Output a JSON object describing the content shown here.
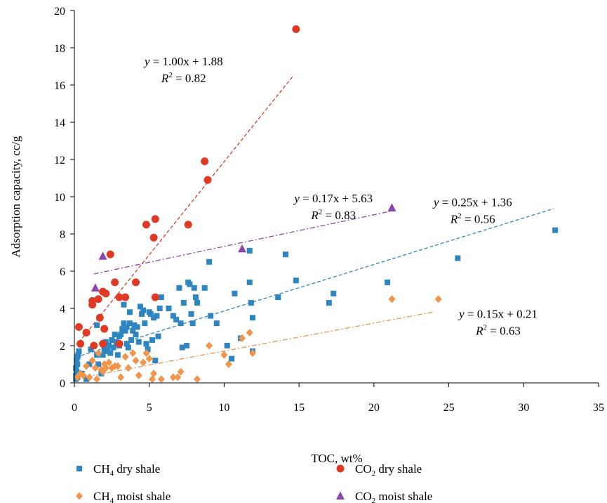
{
  "chart_data": {
    "type": "scatter",
    "xlabel": "TOC, wt%",
    "ylabel": "Adsorption capacity, cc/g",
    "xlim": [
      0,
      35
    ],
    "ylim": [
      0,
      20
    ],
    "xticks": [
      0,
      5,
      10,
      15,
      20,
      25,
      30,
      35
    ],
    "yticks": [
      0,
      2,
      4,
      6,
      8,
      10,
      12,
      14,
      16,
      18,
      20
    ],
    "grid": false,
    "legend_position": "bottom",
    "series": [
      {
        "name": "CH",
        "name_sub": "4",
        "name_suffix": " dry shale",
        "marker": "square",
        "color": "#2e86c1",
        "points": [
          [
            0.1,
            0.2
          ],
          [
            0.1,
            0.4
          ],
          [
            0.15,
            0.6
          ],
          [
            0.1,
            0.8
          ],
          [
            0.2,
            1.0
          ],
          [
            0.15,
            1.2
          ],
          [
            0.2,
            1.4
          ],
          [
            0.25,
            1.5
          ],
          [
            0.3,
            1.7
          ],
          [
            0.2,
            0.3
          ],
          [
            0.5,
            0.5
          ],
          [
            0.8,
            0.2
          ],
          [
            1.0,
            1.0
          ],
          [
            1.1,
            1.8
          ],
          [
            1.3,
            2.0
          ],
          [
            1.5,
            1.5
          ],
          [
            1.5,
            3.1
          ],
          [
            1.6,
            1.0
          ],
          [
            1.8,
            0.5
          ],
          [
            1.9,
            1.5
          ],
          [
            2.0,
            2.0
          ],
          [
            2.0,
            1.8
          ],
          [
            2.1,
            2.2
          ],
          [
            2.2,
            1.7
          ],
          [
            2.3,
            2.0
          ],
          [
            2.4,
            1.6
          ],
          [
            2.5,
            2.3
          ],
          [
            2.6,
            1.9
          ],
          [
            2.7,
            2.6
          ],
          [
            2.8,
            2.2
          ],
          [
            2.9,
            1.5
          ],
          [
            3.0,
            2.5
          ],
          [
            3.0,
            2.0
          ],
          [
            3.1,
            2.6
          ],
          [
            3.2,
            2.9
          ],
          [
            3.3,
            3.2
          ],
          [
            3.4,
            2.8
          ],
          [
            3.5,
            3.0
          ],
          [
            3.5,
            2.1
          ],
          [
            3.6,
            1.9
          ],
          [
            3.7,
            3.2
          ],
          [
            3.8,
            2.3
          ],
          [
            3.9,
            2.8
          ],
          [
            4.0,
            3.1
          ],
          [
            4.1,
            2.6
          ],
          [
            4.2,
            3.0
          ],
          [
            4.3,
            2.2
          ],
          [
            4.4,
            4.1
          ],
          [
            4.5,
            3.7
          ],
          [
            4.6,
            3.9
          ],
          [
            4.7,
            3.2
          ],
          [
            4.8,
            2.1
          ],
          [
            4.9,
            1.8
          ],
          [
            5.0,
            3.8
          ],
          [
            5.1,
            3.7
          ],
          [
            5.2,
            2.3
          ],
          [
            5.3,
            3.5
          ],
          [
            5.4,
            1.2
          ],
          [
            5.5,
            3.6
          ],
          [
            5.6,
            2.5
          ],
          [
            5.7,
            4.0
          ],
          [
            5.8,
            4.6
          ],
          [
            3.3,
            4.2
          ],
          [
            3.7,
            3.8
          ],
          [
            6.6,
            3.6
          ],
          [
            6.8,
            3.4
          ],
          [
            7.0,
            5.1
          ],
          [
            7.1,
            3.2
          ],
          [
            7.2,
            1.9
          ],
          [
            7.3,
            4.3
          ],
          [
            7.5,
            2.0
          ],
          [
            7.6,
            5.4
          ],
          [
            7.7,
            5.3
          ],
          [
            7.8,
            3.7
          ],
          [
            7.9,
            3.2
          ],
          [
            8.0,
            5.1
          ],
          [
            8.1,
            4.6
          ],
          [
            8.2,
            4.3
          ],
          [
            8.7,
            5.1
          ],
          [
            9.0,
            6.5
          ],
          [
            9.1,
            3.6
          ],
          [
            9.5,
            3.2
          ],
          [
            10.2,
            2.0
          ],
          [
            10.5,
            1.3
          ],
          [
            10.7,
            4.8
          ],
          [
            11.1,
            2.4
          ],
          [
            11.7,
            5.4
          ],
          [
            11.8,
            4.3
          ],
          [
            11.9,
            3.5
          ],
          [
            11.7,
            7.1
          ],
          [
            11.9,
            1.7
          ],
          [
            13.6,
            4.6
          ],
          [
            14.1,
            6.9
          ],
          [
            14.8,
            5.5
          ],
          [
            17.0,
            4.3
          ],
          [
            17.3,
            4.8
          ],
          [
            20.9,
            5.4
          ],
          [
            25.6,
            6.7
          ],
          [
            32.1,
            8.2
          ],
          [
            6.3,
            4.0
          ]
        ]
      },
      {
        "name": "CH",
        "name_sub": "4",
        "name_suffix": " moist shale",
        "marker": "diamond",
        "color": "#f0954a",
        "points": [
          [
            0.2,
            0.3
          ],
          [
            0.4,
            0.5
          ],
          [
            0.6,
            0.4
          ],
          [
            0.8,
            0.9
          ],
          [
            1.0,
            0.3
          ],
          [
            1.2,
            1.2
          ],
          [
            1.4,
            0.8
          ],
          [
            1.5,
            0.2
          ],
          [
            1.6,
            1.6
          ],
          [
            1.8,
            0.7
          ],
          [
            1.9,
            0.6
          ],
          [
            2.0,
            1.0
          ],
          [
            2.1,
            0.8
          ],
          [
            2.3,
            1.1
          ],
          [
            2.5,
            0.8
          ],
          [
            2.7,
            0.9
          ],
          [
            2.9,
            0.9
          ],
          [
            3.1,
            0.3
          ],
          [
            3.4,
            1.4
          ],
          [
            3.6,
            0.8
          ],
          [
            3.9,
            1.6
          ],
          [
            4.1,
            1.2
          ],
          [
            4.3,
            0.4
          ],
          [
            4.6,
            1.1
          ],
          [
            4.8,
            1.6
          ],
          [
            5.0,
            1.3
          ],
          [
            5.2,
            0.2
          ],
          [
            5.3,
            0.5
          ],
          [
            5.8,
            0.2
          ],
          [
            6.6,
            0.3
          ],
          [
            6.9,
            0.3
          ],
          [
            7.1,
            0.6
          ],
          [
            8.2,
            0.2
          ],
          [
            9.0,
            2.0
          ],
          [
            10.0,
            1.5
          ],
          [
            10.3,
            1.0
          ],
          [
            11.2,
            2.4
          ],
          [
            11.7,
            2.7
          ],
          [
            11.9,
            1.6
          ],
          [
            21.2,
            4.5
          ],
          [
            24.3,
            4.5
          ]
        ]
      },
      {
        "name": "CO",
        "name_sub": "2",
        "name_suffix": " dry shale",
        "marker": "circle",
        "color": "#e03a25",
        "points": [
          [
            0.3,
            3.0
          ],
          [
            0.4,
            2.1
          ],
          [
            0.8,
            2.7
          ],
          [
            1.2,
            4.2
          ],
          [
            1.2,
            4.4
          ],
          [
            1.3,
            2.0
          ],
          [
            1.6,
            4.5
          ],
          [
            1.7,
            3.5
          ],
          [
            1.9,
            2.1
          ],
          [
            1.9,
            4.9
          ],
          [
            2.0,
            2.9
          ],
          [
            2.1,
            4.8
          ],
          [
            2.4,
            6.9
          ],
          [
            2.7,
            5.4
          ],
          [
            3.0,
            4.6
          ],
          [
            3.0,
            2.1
          ],
          [
            3.4,
            4.6
          ],
          [
            4.1,
            5.4
          ],
          [
            4.8,
            8.5
          ],
          [
            5.3,
            7.8
          ],
          [
            5.4,
            8.8
          ],
          [
            5.4,
            4.6
          ],
          [
            7.6,
            8.5
          ],
          [
            8.7,
            11.9
          ],
          [
            8.9,
            10.9
          ],
          [
            14.8,
            19.0
          ]
        ]
      },
      {
        "name": "CO",
        "name_sub": "2",
        "name_suffix": " moist shale",
        "marker": "triangle",
        "color": "#8e44ad",
        "points": [
          [
            1.4,
            5.1
          ],
          [
            1.9,
            6.8
          ],
          [
            11.2,
            7.2
          ],
          [
            21.2,
            9.4
          ]
        ]
      }
    ],
    "fits": [
      {
        "series": 2,
        "slope": 1.0,
        "intercept": 1.88,
        "x_range": [
          0.3,
          14.6
        ],
        "style": "dashed",
        "color": "#e03a25",
        "equation_lhs": "y",
        "equation_rhs": " = 1.00x + 1.88",
        "r2_label": "R",
        "r2_sup": "2",
        "r2_value": " = 0.82"
      },
      {
        "series": 3,
        "slope": 0.17,
        "intercept": 5.63,
        "x_range": [
          1.3,
          21.4
        ],
        "style": "dashdot",
        "color": "#8e44ad",
        "equation_lhs": "y",
        "equation_rhs": " = 0.17x + 5.63",
        "r2_label": "R",
        "r2_sup": "2",
        "r2_value": " = 0.83"
      },
      {
        "series": 0,
        "slope": 0.25,
        "intercept": 1.36,
        "x_range": [
          0.1,
          32.0
        ],
        "style": "dashed",
        "color": "#2e86c1",
        "equation_lhs": "y",
        "equation_rhs": " = 0.25x + 1.36",
        "r2_label": "R",
        "r2_sup": "2",
        "r2_value": " = 0.56"
      },
      {
        "series": 1,
        "slope": 0.15,
        "intercept": 0.21,
        "x_range": [
          0.1,
          24.0
        ],
        "style": "dashdot",
        "color": "#f0954a",
        "equation_lhs": "y",
        "equation_rhs": " = 0.15x + 0.21",
        "r2_label": "R",
        "r2_sup": "2",
        "r2_value": " = 0.63"
      }
    ]
  }
}
